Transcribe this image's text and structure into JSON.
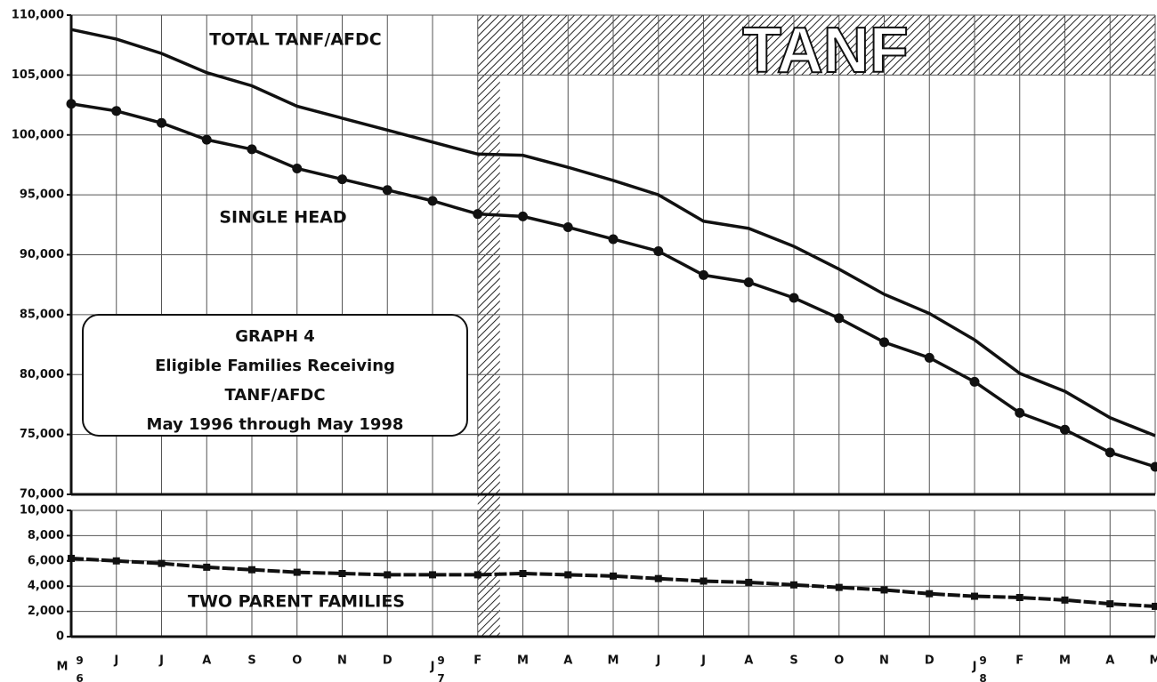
{
  "chart_data": [
    {
      "type": "line",
      "annotations": [
        "TOTAL TANF/AFDC",
        "SINGLE HEAD"
      ],
      "tanf_label": "TANF",
      "box_text": [
        "GRAPH 4",
        "Eligible Families Receiving",
        "TANF/AFDC",
        "May 1996 through May 1998"
      ],
      "ylim": [
        70000,
        110000
      ],
      "yticks": [
        {
          "value": 70000,
          "label": "70,000"
        },
        {
          "value": 75000,
          "label": "75,000"
        },
        {
          "value": 80000,
          "label": "80,000"
        },
        {
          "value": 85000,
          "label": "85,000"
        },
        {
          "value": 90000,
          "label": "90,000"
        },
        {
          "value": 95000,
          "label": "95,000"
        },
        {
          "value": 100000,
          "label": "100,000"
        },
        {
          "value": 105000,
          "label": "105,000"
        },
        {
          "value": 110000,
          "label": "110,000"
        }
      ],
      "grid": true,
      "series": [
        {
          "name": "TOTAL TANF/AFDC",
          "color": "#111111",
          "marker": "none",
          "values": [
            108800,
            108000,
            106800,
            105200,
            104100,
            102400,
            101400,
            100400,
            99400,
            98400,
            98300,
            97300,
            96200,
            95000,
            92800,
            92200,
            90700,
            88800,
            86700,
            85100,
            82900,
            80100,
            78600,
            76400,
            74900
          ]
        },
        {
          "name": "SINGLE HEAD",
          "color": "#111111",
          "marker": "circle",
          "values": [
            102600,
            102000,
            101000,
            99600,
            98800,
            97200,
            96300,
            95400,
            94500,
            93400,
            93200,
            92300,
            91300,
            90300,
            88300,
            87700,
            86400,
            84700,
            82700,
            81400,
            79400,
            76800,
            75400,
            73500,
            72300
          ]
        }
      ]
    },
    {
      "type": "line",
      "annotations": [
        "TWO PARENT FAMILIES"
      ],
      "categories": [
        "M",
        "J",
        "J",
        "A",
        "S",
        "O",
        "N",
        "D",
        "J",
        "F",
        "M",
        "A",
        "M",
        "J",
        "J",
        "A",
        "S",
        "O",
        "N",
        "D",
        "J",
        "F",
        "M",
        "A",
        "M"
      ],
      "year_labels": [
        "96",
        "97",
        "98"
      ],
      "ylim": [
        0,
        10000
      ],
      "yticks": [
        0,
        {
          "value": 2000,
          "label": "2,000"
        },
        {
          "value": 4000,
          "label": "4,000"
        },
        {
          "value": 6000,
          "label": "6,000"
        },
        {
          "value": 8000,
          "label": "8,000"
        },
        {
          "value": 10000,
          "label": "10,000"
        }
      ],
      "grid": true,
      "series": [
        {
          "name": "TWO PARENT FAMILIES",
          "color": "#111111",
          "marker": "square",
          "values": [
            6200,
            6000,
            5800,
            5500,
            5300,
            5100,
            5000,
            4900,
            4900,
            4900,
            5000,
            4900,
            4800,
            4600,
            4400,
            4300,
            4100,
            3900,
            3700,
            3400,
            3200,
            3100,
            2900,
            2600,
            2400
          ]
        }
      ]
    }
  ]
}
